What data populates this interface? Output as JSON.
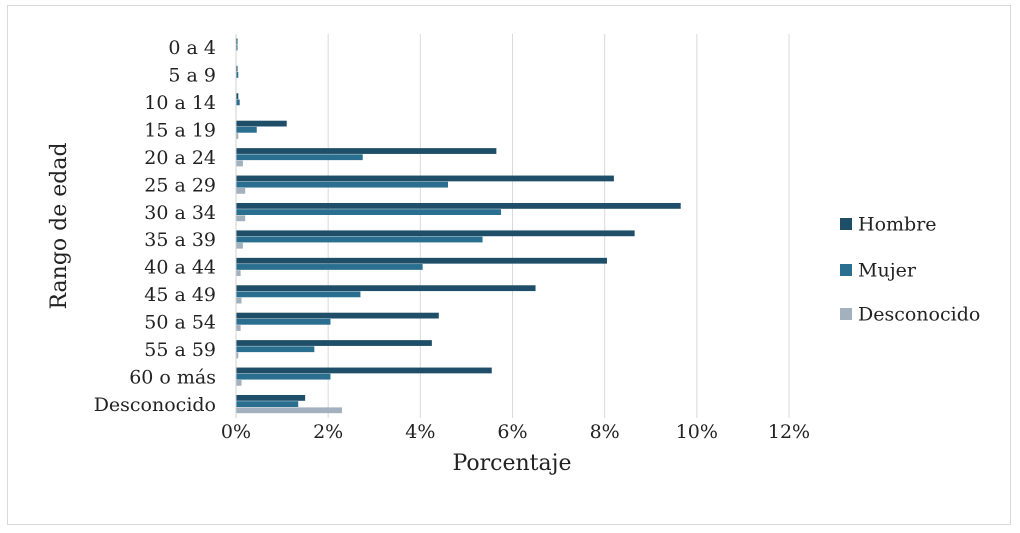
{
  "chart_data": {
    "type": "bar",
    "orientation": "horizontal",
    "xlabel": "Porcentaje",
    "ylabel": "Rango de edad",
    "xlim": [
      0,
      12
    ],
    "x_ticks": [
      "0%",
      "2%",
      "4%",
      "6%",
      "8%",
      "10%",
      "12%"
    ],
    "grid": true,
    "legend_position": "right",
    "categories": [
      "0 a 4",
      "5 a 9",
      "10 a 14",
      "15 a 19",
      "20 a 24",
      "25 a 29",
      "30 a 34",
      "35 a 39",
      "40 a 44",
      "45 a 49",
      "50 a 54",
      "55 a 59",
      "60 o más",
      "Desconocido"
    ],
    "series": [
      {
        "name": "Hombre",
        "color": "#1f4e68",
        "values": [
          0.02,
          0.03,
          0.05,
          1.1,
          5.65,
          8.2,
          9.65,
          8.65,
          8.05,
          6.5,
          4.4,
          4.25,
          5.55,
          1.5
        ]
      },
      {
        "name": "Mujer",
        "color": "#2a6f8f",
        "values": [
          0.03,
          0.05,
          0.08,
          0.45,
          2.75,
          4.6,
          5.75,
          5.35,
          4.05,
          2.7,
          2.05,
          1.7,
          2.05,
          1.35
        ]
      },
      {
        "name": "Desconocido",
        "color": "#a2b1bd",
        "values": [
          0.0,
          0.0,
          0.0,
          0.05,
          0.15,
          0.2,
          0.2,
          0.15,
          0.1,
          0.12,
          0.1,
          0.05,
          0.12,
          2.3
        ]
      }
    ]
  }
}
